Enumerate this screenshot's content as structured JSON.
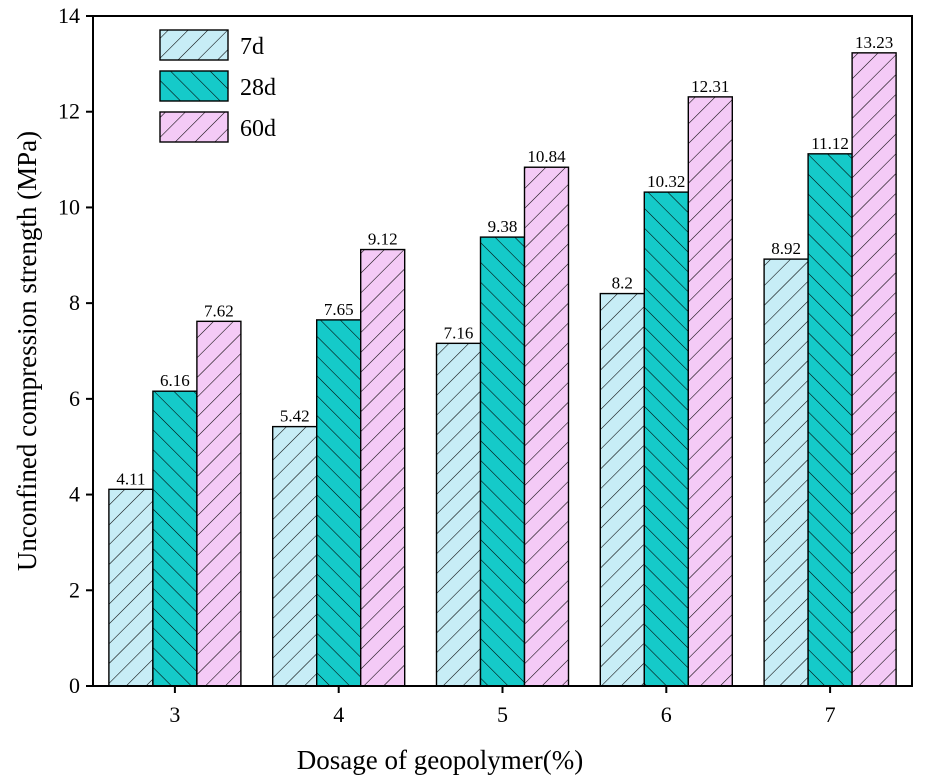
{
  "chart_data": {
    "type": "bar",
    "title": "",
    "xlabel": "Dosage of geopolymer(%)",
    "ylabel": "Unconfined compression strength (MPa)",
    "categories": [
      "3",
      "4",
      "5",
      "6",
      "7"
    ],
    "ylim": [
      0,
      14
    ],
    "yticks": [
      0,
      2,
      4,
      6,
      8,
      10,
      12,
      14
    ],
    "legend_position": "top-left",
    "grid": false,
    "series": [
      {
        "name": "7d",
        "color": "#c7edf6",
        "values": [
          4.11,
          5.42,
          7.16,
          8.2,
          8.92
        ],
        "labels": [
          "4.11",
          "5.42",
          "7.16",
          "8.2",
          "8.92"
        ]
      },
      {
        "name": "28d",
        "color": "#15cac9",
        "values": [
          6.16,
          7.65,
          9.38,
          10.32,
          11.12
        ],
        "labels": [
          "6.16",
          "7.65",
          "9.38",
          "10.32",
          "11.12"
        ]
      },
      {
        "name": "60d",
        "color": "#f4caf6",
        "values": [
          7.62,
          9.12,
          10.84,
          12.31,
          13.23
        ],
        "labels": [
          "7.62",
          "9.12",
          "10.84",
          "12.31",
          "13.23"
        ]
      }
    ]
  }
}
